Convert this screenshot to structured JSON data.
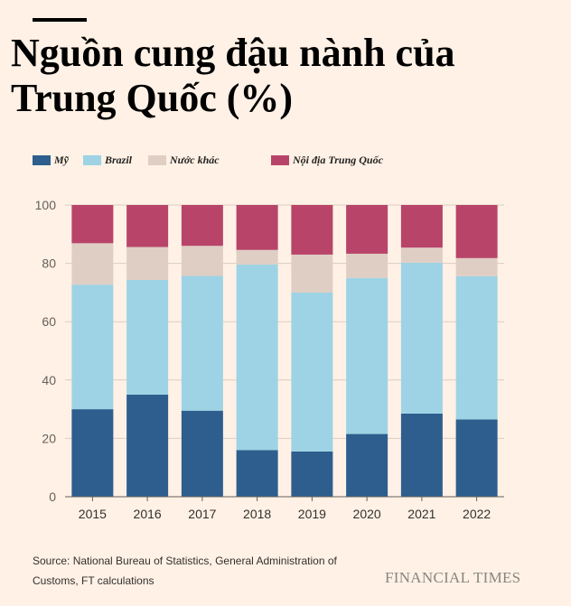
{
  "title": "Nguồn cung đậu nành của Trung Quốc (%)",
  "source": "Source: National Bureau of Statistics, General Administration of Customs, FT calculations",
  "brand": "FINANCIAL TIMES",
  "chart_data": {
    "type": "bar",
    "stacked": true,
    "categories": [
      "2015",
      "2016",
      "2017",
      "2018",
      "2019",
      "2020",
      "2021",
      "2022"
    ],
    "series": [
      {
        "name": "Mỹ",
        "color": "#2e5e8e",
        "values": [
          30,
          35,
          29.5,
          16,
          15.5,
          21.5,
          28.5,
          26.5
        ]
      },
      {
        "name": "Brazil",
        "color": "#9dd3e4",
        "values": [
          42.7,
          39.3,
          46.2,
          63.6,
          54.5,
          53.5,
          51.7,
          49.1
        ]
      },
      {
        "name": "Nước khác",
        "color": "#dfcec4",
        "values": [
          14.2,
          11.3,
          10.3,
          5.0,
          13.0,
          8.3,
          5.2,
          6.2
        ]
      },
      {
        "name": "Nội địa Trung Quốc",
        "color": "#b8446a",
        "values": [
          13.1,
          14.4,
          14.0,
          15.4,
          17.0,
          16.7,
          14.6,
          18.2
        ]
      }
    ],
    "ylim": [
      0,
      100
    ],
    "yticks": [
      0,
      20,
      40,
      60,
      80,
      100
    ],
    "grid": true,
    "legend": "top-left"
  }
}
